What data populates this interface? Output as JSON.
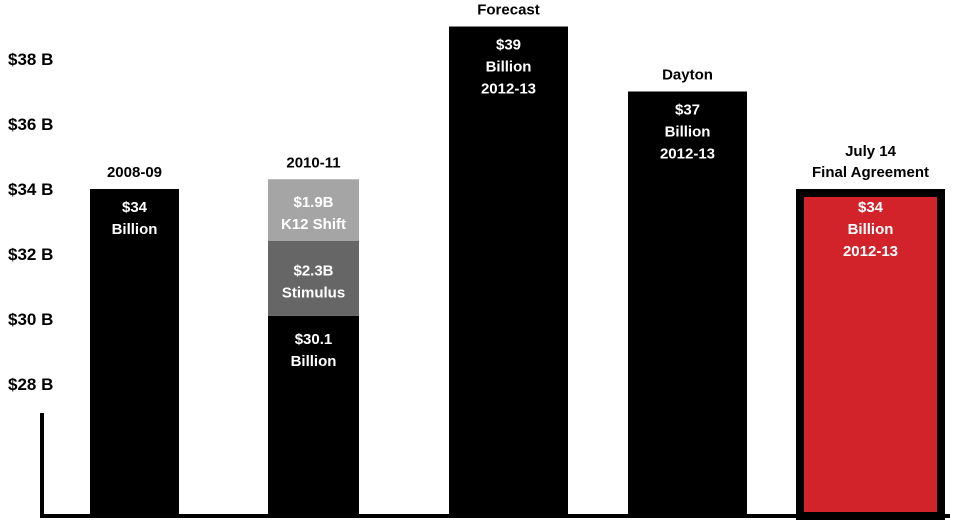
{
  "chart_data": {
    "type": "bar",
    "title": "",
    "xlabel": "",
    "ylabel": "",
    "ylim": [
      24,
      39.5
    ],
    "yticks": [
      "$28 B",
      "$30 B",
      "$32 B",
      "$34 B",
      "$36 B",
      "$38 B"
    ],
    "ytick_values": [
      28,
      30,
      32,
      34,
      36,
      38
    ],
    "categories": [
      {
        "label_lines": [
          "2008-09"
        ],
        "total": 34,
        "segments": [
          {
            "value": 34,
            "color": "#000000",
            "text": [
              "$34",
              "Billion"
            ]
          }
        ]
      },
      {
        "label_lines": [
          "2010-11"
        ],
        "total": 34.3,
        "segments": [
          {
            "value": 30.1,
            "color": "#000000",
            "text": [
              "$30.1",
              "Billion"
            ]
          },
          {
            "value": 2.3,
            "color": "#666666",
            "text": [
              "$2.3B",
              "Stimulus"
            ]
          },
          {
            "value": 1.9,
            "color": "#a5a5a5",
            "text": [
              "$1.9B",
              "K12 Shift"
            ]
          }
        ]
      },
      {
        "label_lines": [
          "Forecast"
        ],
        "total": 39,
        "segments": [
          {
            "value": 39,
            "color": "#000000",
            "text": [
              "$39",
              "Billion",
              "2012-13"
            ]
          }
        ]
      },
      {
        "label_lines": [
          "Dayton"
        ],
        "total": 37,
        "segments": [
          {
            "value": 37,
            "color": "#000000",
            "text": [
              "$37",
              "Billion",
              "2012-13"
            ]
          }
        ]
      },
      {
        "label_lines": [
          "July 14",
          "Final Agreement"
        ],
        "total": 34,
        "segments": [
          {
            "value": 34,
            "color": "#d2232a",
            "outline": "#000000",
            "text": [
              "$34",
              "Billion",
              "2012-13"
            ]
          }
        ]
      }
    ],
    "grid": false,
    "legend": "none"
  }
}
